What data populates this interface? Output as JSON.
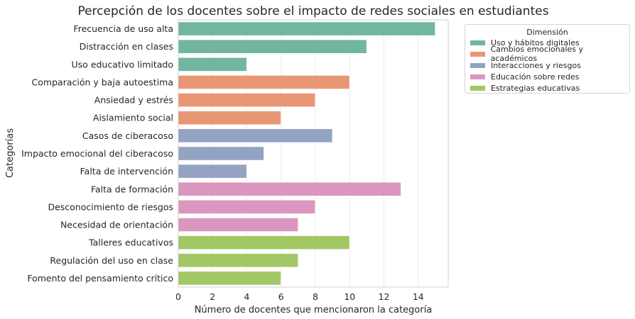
{
  "chart_data": {
    "type": "bar",
    "orientation": "horizontal",
    "title": "Percepción de los docentes sobre el impacto de redes sociales en estudiantes",
    "xlabel": "Número de docentes que mencionaron la categoría",
    "ylabel": "Categorías",
    "xlim": [
      0,
      15.75
    ],
    "xticks": [
      0,
      2,
      4,
      6,
      8,
      10,
      12,
      14
    ],
    "grid": true,
    "legend": {
      "title": "Dimensión",
      "placement": "outside-top-right",
      "entries": [
        {
          "label": "Uso y hábitos digitales",
          "color": "#72b6a1"
        },
        {
          "label": "Cambios emocionales y académicos",
          "color": "#e99675"
        },
        {
          "label": "Interacciones y riesgos",
          "color": "#95a3c3"
        },
        {
          "label": "Educación sobre redes",
          "color": "#db96c0"
        },
        {
          "label": "Estrategias educativas",
          "color": "#a2c865"
        }
      ]
    },
    "categories": [
      "Frecuencia de uso alta",
      "Distracción en clases",
      "Uso educativo limitado",
      "Comparación y baja autoestima",
      "Ansiedad y estrés",
      "Aislamiento social",
      "Casos de ciberacoso",
      "Impacto emocional del ciberacoso",
      "Falta de intervención",
      "Falta de formación",
      "Desconocimiento de riesgos",
      "Necesidad de orientación",
      "Talleres educativos",
      "Regulación del uso en clase",
      "Fomento del pensamiento crítico"
    ],
    "values": [
      15,
      11,
      4,
      10,
      8,
      6,
      9,
      5,
      4,
      13,
      8,
      7,
      10,
      7,
      6
    ],
    "dimension_index": [
      0,
      0,
      0,
      1,
      1,
      1,
      2,
      2,
      2,
      3,
      3,
      3,
      4,
      4,
      4
    ]
  }
}
